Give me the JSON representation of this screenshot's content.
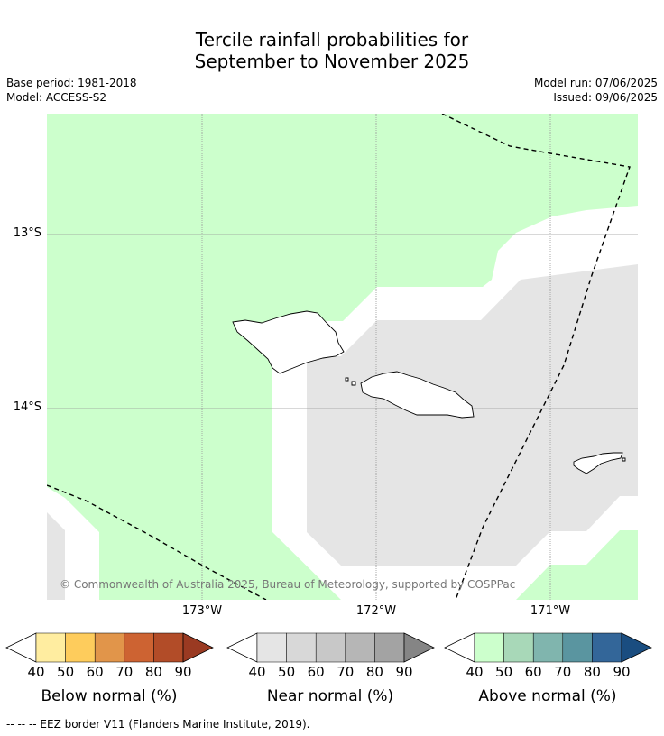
{
  "title": {
    "line1": "Tercile rainfall probabilities for",
    "line2": "September to November 2025"
  },
  "meta": {
    "base_period": "Base period: 1981-2018",
    "model": "Model: ACCESS-S2",
    "model_run": "Model run: 07/06/2025",
    "issued": "Issued: 09/06/2025"
  },
  "map": {
    "lat_ticks": [
      "13°S",
      "14°S"
    ],
    "lon_ticks": [
      "173°W",
      "172°W",
      "171°W"
    ],
    "copyright": "© Commonwealth of Australia 2025, Bureau of Meteorology, supported by COSPPac",
    "colors": {
      "above_40_50": "#ccffcc",
      "near_40_50": "#e5e5e5",
      "no_signal": "#ffffff"
    }
  },
  "colorbars": [
    {
      "title": "Below normal (%)",
      "labels": [
        "40",
        "50",
        "60",
        "70",
        "80",
        "90"
      ],
      "colors": [
        "#ffeda0",
        "#fecc5c",
        "#e1954a",
        "#cd6332",
        "#b24c28",
        "#9a3a22"
      ]
    },
    {
      "title": "Near normal (%)",
      "labels": [
        "40",
        "50",
        "60",
        "70",
        "80",
        "90"
      ],
      "colors": [
        "#e5e5e5",
        "#d8d8d8",
        "#c8c8c8",
        "#b6b6b6",
        "#a3a3a3",
        "#858585"
      ]
    },
    {
      "title": "Above normal (%)",
      "labels": [
        "40",
        "50",
        "60",
        "70",
        "80",
        "90"
      ],
      "colors": [
        "#ccffcc",
        "#a8d8b8",
        "#80b5ae",
        "#5a95a0",
        "#336699",
        "#1a4d80"
      ]
    }
  ],
  "footer": "--  --  -- EEZ border V11 (Flanders Marine Institute, 2019)."
}
